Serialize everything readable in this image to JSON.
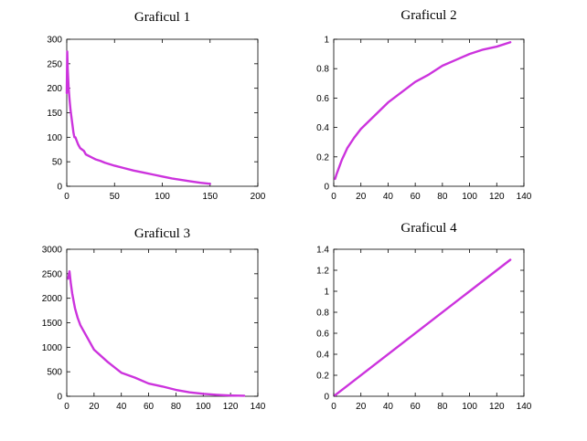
{
  "colors": {
    "series": "#cc33dd",
    "axis": "#000000",
    "background": "#ffffff"
  },
  "chart_data": [
    {
      "type": "line",
      "title": "Graficul 1",
      "xlabel": "",
      "ylabel": "",
      "xlim": [
        0,
        200
      ],
      "ylim": [
        0,
        300
      ],
      "xticks": [
        0,
        50,
        100,
        150,
        200
      ],
      "yticks": [
        0,
        50,
        100,
        150,
        200,
        250,
        300
      ],
      "grid": false,
      "series": [
        {
          "x": [
            0,
            0.5,
            1,
            2,
            3,
            4,
            5,
            6,
            7,
            8,
            9,
            10,
            12,
            14,
            16,
            18,
            20,
            25,
            30,
            35,
            40,
            50,
            60,
            70,
            80,
            90,
            100,
            110,
            120,
            130,
            140,
            150
          ],
          "y": [
            190,
            275,
            240,
            200,
            175,
            155,
            140,
            125,
            110,
            100,
            100,
            95,
            85,
            78,
            75,
            72,
            65,
            60,
            55,
            52,
            48,
            42,
            37,
            32,
            28,
            24,
            20,
            16,
            13,
            10,
            7,
            5
          ]
        }
      ]
    },
    {
      "type": "line",
      "title": "Graficul 2",
      "xlabel": "",
      "ylabel": "",
      "xlim": [
        0,
        140
      ],
      "ylim": [
        0,
        1
      ],
      "xticks": [
        0,
        20,
        40,
        60,
        80,
        100,
        120,
        140
      ],
      "yticks": [
        0,
        0.2,
        0.4,
        0.6,
        0.8,
        1
      ],
      "grid": false,
      "series": [
        {
          "x": [
            1,
            2,
            4,
            6,
            8,
            10,
            15,
            20,
            30,
            40,
            50,
            60,
            70,
            80,
            90,
            100,
            110,
            120,
            130
          ],
          "y": [
            0.05,
            0.08,
            0.13,
            0.18,
            0.22,
            0.26,
            0.33,
            0.39,
            0.48,
            0.57,
            0.64,
            0.71,
            0.76,
            0.82,
            0.86,
            0.9,
            0.93,
            0.95,
            0.98
          ]
        }
      ]
    },
    {
      "type": "line",
      "title": "Graficul 3",
      "xlabel": "",
      "ylabel": "",
      "xlim": [
        0,
        140
      ],
      "ylim": [
        0,
        3000
      ],
      "xticks": [
        0,
        20,
        40,
        60,
        80,
        100,
        120,
        140
      ],
      "yticks": [
        0,
        500,
        1000,
        1500,
        2000,
        2500,
        3000
      ],
      "grid": false,
      "series": [
        {
          "x": [
            1,
            2,
            3,
            4,
            5,
            6,
            8,
            10,
            12,
            15,
            20,
            30,
            40,
            50,
            60,
            70,
            80,
            90,
            100,
            110,
            120,
            130
          ],
          "y": [
            2400,
            2550,
            2300,
            2100,
            1950,
            1800,
            1600,
            1450,
            1350,
            1200,
            950,
            700,
            480,
            380,
            260,
            200,
            130,
            80,
            50,
            30,
            15,
            10
          ]
        }
      ]
    },
    {
      "type": "line",
      "title": "Graficul 4",
      "xlabel": "",
      "ylabel": "",
      "xlim": [
        0,
        140
      ],
      "ylim": [
        0,
        1.4
      ],
      "xticks": [
        0,
        20,
        40,
        60,
        80,
        100,
        120,
        140
      ],
      "yticks": [
        0,
        0.2,
        0.4,
        0.6,
        0.8,
        1,
        1.2,
        1.4
      ],
      "grid": false,
      "series": [
        {
          "x": [
            1,
            130
          ],
          "y": [
            0.01,
            1.3
          ]
        }
      ]
    }
  ]
}
